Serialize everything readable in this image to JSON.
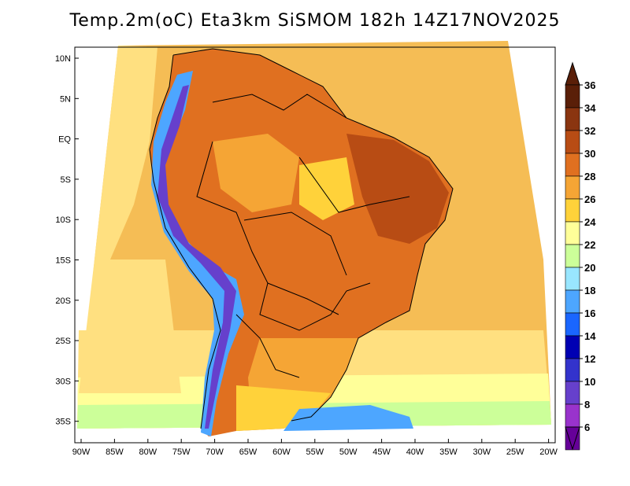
{
  "title": "Temp.2m(oC) Eta3km SiSMOM 182h 14Z17NOV2025",
  "lat_ticks": [
    "10N",
    "5N",
    "EQ",
    "5S",
    "10S",
    "15S",
    "20S",
    "25S",
    "30S",
    "35S"
  ],
  "lon_ticks": [
    "90W",
    "85W",
    "80W",
    "75W",
    "70W",
    "65W",
    "60W",
    "55W",
    "50W",
    "45W",
    "40W",
    "35W",
    "30W",
    "25W",
    "20W"
  ],
  "colorbar": {
    "labels": [
      "36",
      "34",
      "32",
      "30",
      "28",
      "26",
      "24",
      "22",
      "20",
      "18",
      "16",
      "14",
      "12",
      "10",
      "8",
      "6"
    ],
    "colors": [
      "#5a1f08",
      "#8a3510",
      "#b84c14",
      "#e07020",
      "#f5a535",
      "#ffd23a",
      "#ffff99",
      "#ccff99",
      "#99e6ff",
      "#4da6ff",
      "#1a66ff",
      "#0000b3",
      "#3333cc",
      "#6640cc",
      "#9933cc",
      "#660099"
    ]
  },
  "palette": {
    "ocean_warm": "#f5bd55",
    "ocean_mid": "#ffe080",
    "ocean_cool": "#ffff99",
    "ocean_cold": "#ccff99",
    "land_hot": "#e07020",
    "land_very_hot": "#b84c14",
    "land_warm": "#f5a535",
    "andes_cool": "#4da6ff",
    "andes_cold": "#6640cc",
    "south_cold": "#4da6ff",
    "border": "#000000"
  }
}
